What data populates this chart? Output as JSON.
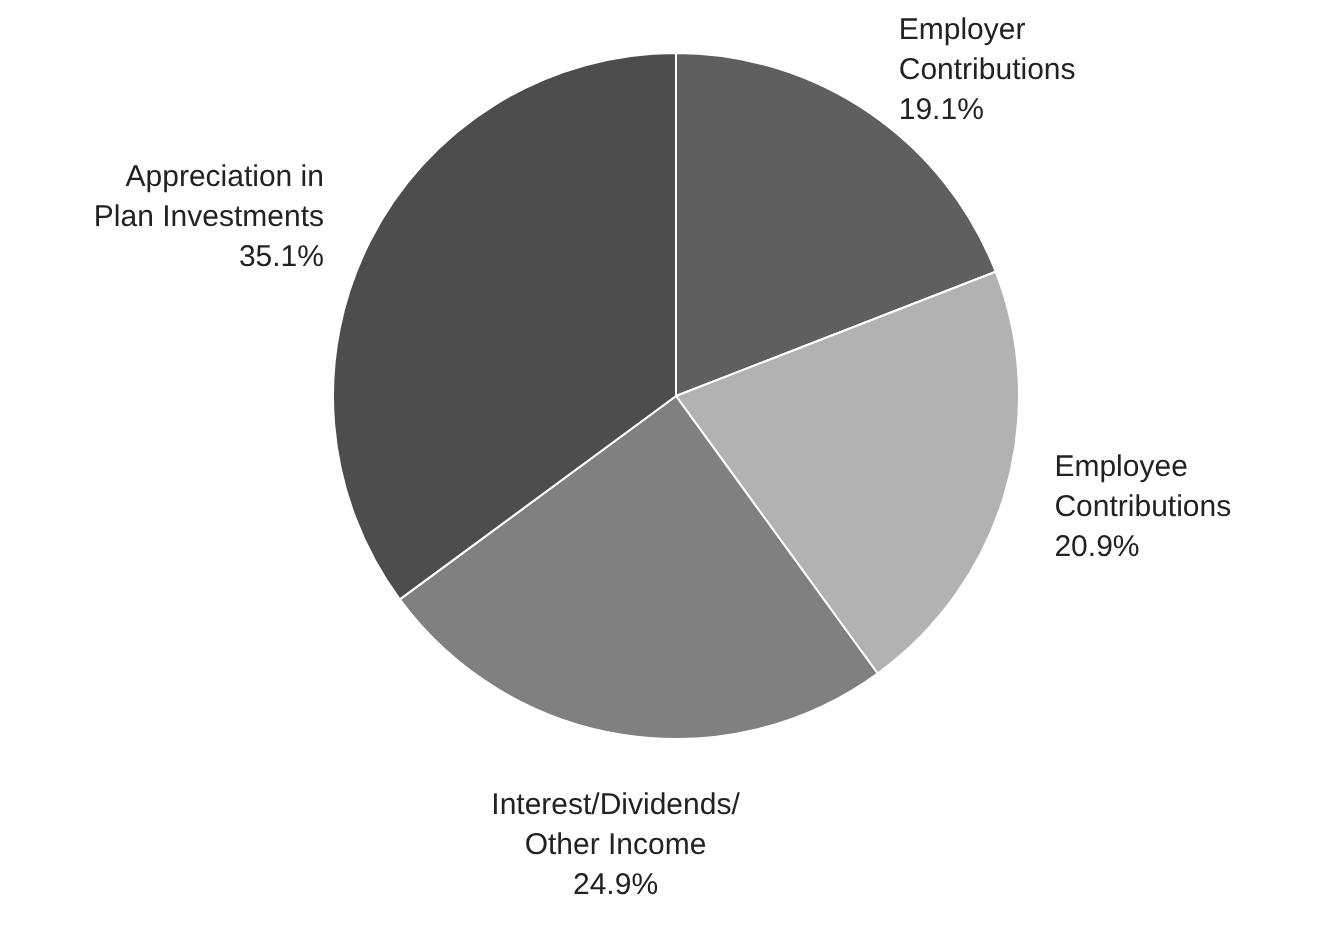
{
  "chart_data": {
    "type": "pie",
    "categories": [
      "Employer\nContributions",
      "Employee\nContributions",
      "Interest/Dividends/\nOther Income",
      "Appreciation in\nPlan Investments"
    ],
    "values": [
      19.1,
      20.9,
      24.9,
      35.1
    ],
    "value_labels": [
      "19.1%",
      "20.9%",
      "24.9%",
      "35.1%"
    ],
    "colors": [
      "#5f5f5f",
      "#b2b2b2",
      "#808080",
      "#4d4d4d"
    ],
    "legend": false
  }
}
